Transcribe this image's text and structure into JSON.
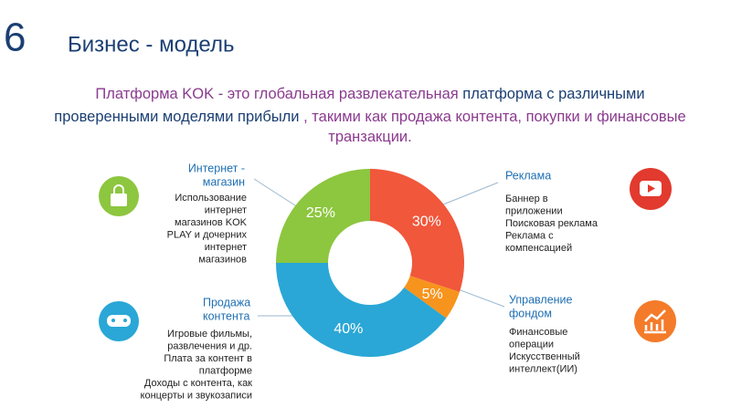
{
  "slide": {
    "number": "6",
    "title": "Бизнес - модель",
    "subtitle": [
      [
        {
          "text": "Платформа KOK - это глобальная развлекательная",
          "color": "#8b3a8f"
        },
        {
          "text": " платформа с различными",
          "color": "#1b3f73"
        }
      ],
      [
        {
          "text": "проверенными моделями прибыли",
          "color": "#1b3f73"
        },
        {
          "text": " , такими как продажа контента, покупки и финансовые",
          "color": "#8b3a8f"
        }
      ],
      [
        {
          "text": "транзакции.",
          "color": "#8b3a8f"
        }
      ]
    ]
  },
  "callouts": [
    {
      "title": [
        "Интернет -",
        "магазин"
      ],
      "lines": [
        "Использование",
        "интернет",
        "магазинов KOK",
        "PLAY и дочерних",
        "интернет",
        "магазинов"
      ]
    },
    {
      "title": [
        "Продажа",
        "контента"
      ],
      "lines": [
        "Игровые фильмы,",
        "развлечения и др.",
        "Плата за контент в",
        "платформе",
        "Доходы с контента, как",
        "концерты и звукозаписи"
      ]
    },
    {
      "title": [
        "Реклама"
      ],
      "lines": [
        "Баннер в",
        "приложении",
        "Поисковая реклама",
        "Реклама с",
        "компенсацией"
      ]
    },
    {
      "title": [
        "Управление",
        "фондом"
      ],
      "lines": [
        "Финансовые",
        "операции",
        "Искусственный",
        "интеллект(ИИ)"
      ]
    }
  ],
  "chart_data": {
    "type": "pie",
    "donut": true,
    "categories": [
      "Реклама",
      "Управление фондом",
      "Продажа контента",
      "Интернет - магазин"
    ],
    "values": [
      30,
      5,
      40,
      25
    ],
    "value_labels": [
      "30%",
      "5%",
      "40%",
      "25%"
    ],
    "colors": [
      "#f0573b",
      "#f7941d",
      "#2aa7d6",
      "#8dc63f"
    ]
  }
}
